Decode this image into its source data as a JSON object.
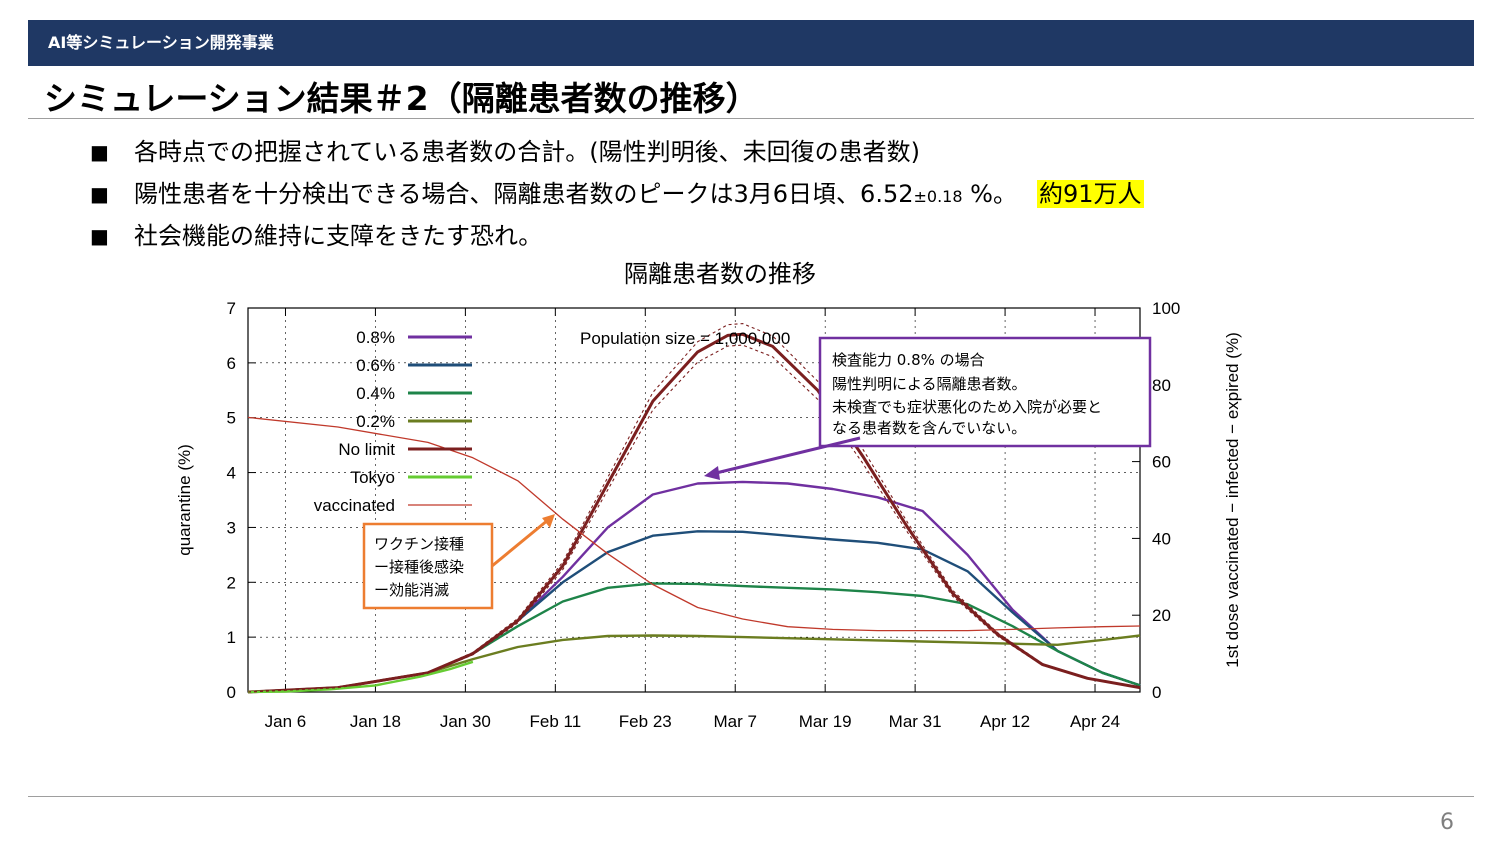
{
  "header": {
    "section": "AI等シミュレーション開発事業"
  },
  "slide": {
    "title": "シミュレーション結果＃2（隔離患者数の推移）",
    "page_number": "6"
  },
  "bullets": [
    {
      "mark": "■",
      "text": "各時点での把握されている患者数の合計。(陽性判明後、未回復の患者数)"
    },
    {
      "mark": "■",
      "text_before": "陽性患者を十分検出できる場合、隔離患者数のピークは3月6日頃、6.52",
      "text_sub": "±0.18",
      "text_after": " %。",
      "highlight": "約91万人"
    },
    {
      "mark": "■",
      "text": "社会機能の維持に支障をきたす恐れ。"
    }
  ],
  "annotations": {
    "population": "Population size = 1,000,000",
    "box1": [
      "検査能力 0.8% の場合",
      "陽性判明による隔離患者数。",
      "未検査でも症状悪化のため入院が必要と",
      "なる患者数を含んでいない。"
    ],
    "box2": [
      "ワクチン接種",
      "ー接種後感染",
      "ー効能消滅"
    ],
    "box1_color": "#7030a0",
    "box2_color": "#ed7d31"
  },
  "chart_data": {
    "type": "line",
    "title": "隔離患者数の推移",
    "xlabel": "",
    "ylabel": "quarantine (%)",
    "y2label": "1st dose vaccinated − infected − expired (%)",
    "x_ticks": [
      "Jan 6",
      "Jan 18",
      "Jan 30",
      "Feb 11",
      "Feb 23",
      "Mar 7",
      "Mar 19",
      "Mar 31",
      "Apr 12",
      "Apr 24"
    ],
    "xlim_days": [
      1,
      120
    ],
    "ylim": [
      0,
      7
    ],
    "y_ticks": [
      0,
      1,
      2,
      3,
      4,
      5,
      6,
      7
    ],
    "y2lim": [
      0,
      100
    ],
    "y2_ticks": [
      0,
      20,
      40,
      60,
      80,
      100
    ],
    "grid": true,
    "legend_position": "top-left",
    "series": [
      {
        "name": "0.8%",
        "color": "#7030a0",
        "axis": "left",
        "points": [
          [
            1,
            0
          ],
          [
            13,
            0.08
          ],
          [
            25,
            0.35
          ],
          [
            31,
            0.7
          ],
          [
            37,
            1.3
          ],
          [
            43,
            2.1
          ],
          [
            49,
            3.0
          ],
          [
            55,
            3.6
          ],
          [
            61,
            3.8
          ],
          [
            67,
            3.83
          ],
          [
            73,
            3.8
          ],
          [
            79,
            3.7
          ],
          [
            85,
            3.55
          ],
          [
            91,
            3.3
          ],
          [
            97,
            2.5
          ],
          [
            103,
            1.5
          ],
          [
            109,
            0.75
          ],
          [
            115,
            0.35
          ],
          [
            120,
            0.12
          ]
        ]
      },
      {
        "name": "0.6%",
        "color": "#1f4e79",
        "axis": "left",
        "points": [
          [
            1,
            0
          ],
          [
            13,
            0.08
          ],
          [
            25,
            0.35
          ],
          [
            31,
            0.7
          ],
          [
            37,
            1.3
          ],
          [
            43,
            2.0
          ],
          [
            49,
            2.55
          ],
          [
            55,
            2.85
          ],
          [
            61,
            2.93
          ],
          [
            67,
            2.92
          ],
          [
            73,
            2.85
          ],
          [
            79,
            2.78
          ],
          [
            85,
            2.72
          ],
          [
            91,
            2.6
          ],
          [
            97,
            2.2
          ],
          [
            103,
            1.45
          ],
          [
            109,
            0.75
          ],
          [
            115,
            0.35
          ],
          [
            120,
            0.12
          ]
        ]
      },
      {
        "name": "0.4%",
        "color": "#1e8449",
        "axis": "left",
        "points": [
          [
            1,
            0
          ],
          [
            13,
            0.08
          ],
          [
            25,
            0.35
          ],
          [
            31,
            0.7
          ],
          [
            37,
            1.2
          ],
          [
            43,
            1.65
          ],
          [
            49,
            1.9
          ],
          [
            55,
            1.98
          ],
          [
            61,
            1.97
          ],
          [
            67,
            1.93
          ],
          [
            73,
            1.9
          ],
          [
            79,
            1.87
          ],
          [
            85,
            1.82
          ],
          [
            91,
            1.75
          ],
          [
            97,
            1.6
          ],
          [
            103,
            1.2
          ],
          [
            109,
            0.75
          ],
          [
            115,
            0.35
          ],
          [
            120,
            0.12
          ]
        ]
      },
      {
        "name": "0.2%",
        "color": "#6b7d20",
        "axis": "left",
        "points": [
          [
            1,
            0
          ],
          [
            13,
            0.08
          ],
          [
            25,
            0.35
          ],
          [
            31,
            0.6
          ],
          [
            37,
            0.82
          ],
          [
            43,
            0.95
          ],
          [
            49,
            1.02
          ],
          [
            55,
            1.03
          ],
          [
            61,
            1.02
          ],
          [
            67,
            1.0
          ],
          [
            73,
            0.98
          ],
          [
            79,
            0.96
          ],
          [
            85,
            0.94
          ],
          [
            91,
            0.92
          ],
          [
            97,
            0.9
          ],
          [
            103,
            0.88
          ],
          [
            109,
            0.86
          ],
          [
            115,
            0.95
          ],
          [
            120,
            1.03
          ]
        ]
      },
      {
        "name": "No limit",
        "color": "#7b1f1f",
        "axis": "left",
        "points": [
          [
            1,
            0
          ],
          [
            13,
            0.08
          ],
          [
            25,
            0.35
          ],
          [
            31,
            0.7
          ],
          [
            37,
            1.3
          ],
          [
            43,
            2.3
          ],
          [
            49,
            3.8
          ],
          [
            55,
            5.3
          ],
          [
            61,
            6.2
          ],
          [
            65,
            6.5
          ],
          [
            67,
            6.52
          ],
          [
            71,
            6.3
          ],
          [
            77,
            5.5
          ],
          [
            83,
            4.3
          ],
          [
            89,
            3.0
          ],
          [
            95,
            1.8
          ],
          [
            101,
            1.05
          ],
          [
            107,
            0.5
          ],
          [
            113,
            0.25
          ],
          [
            120,
            0.08
          ]
        ]
      },
      {
        "name": "Tokyo",
        "color": "#66cc33",
        "axis": "left",
        "points": [
          [
            1,
            0
          ],
          [
            6,
            0.01
          ],
          [
            12,
            0.05
          ],
          [
            18,
            0.12
          ],
          [
            24,
            0.28
          ],
          [
            28,
            0.42
          ],
          [
            31,
            0.55
          ]
        ]
      },
      {
        "name": "vaccinated",
        "color": "#c0392b",
        "axis": "right",
        "points": [
          [
            1,
            71.5
          ],
          [
            13,
            69
          ],
          [
            25,
            65
          ],
          [
            31,
            61
          ],
          [
            37,
            55
          ],
          [
            43,
            45
          ],
          [
            49,
            36
          ],
          [
            55,
            28
          ],
          [
            61,
            22
          ],
          [
            67,
            19
          ],
          [
            73,
            17
          ],
          [
            79,
            16.3
          ],
          [
            85,
            16
          ],
          [
            91,
            16
          ],
          [
            97,
            16
          ],
          [
            103,
            16.3
          ],
          [
            109,
            16.7
          ],
          [
            115,
            17
          ],
          [
            120,
            17.2
          ]
        ]
      }
    ]
  }
}
